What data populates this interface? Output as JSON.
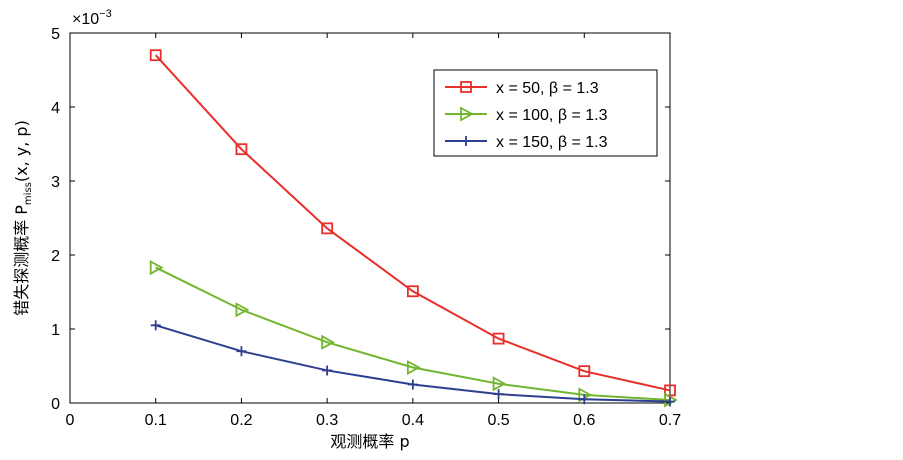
{
  "chart_data": {
    "type": "line",
    "title": "",
    "xlabel": "观测概率 p",
    "ylabel": {
      "prefix": "错失探测概率 P",
      "subscript": "miss",
      "suffix": "(x, y, p)"
    },
    "y_scale_label": {
      "base": "×10",
      "exp": "−3"
    },
    "xlim": [
      0,
      0.7
    ],
    "ylim": [
      0,
      5
    ],
    "x_ticks": [
      "0",
      "0.1",
      "0.2",
      "0.3",
      "0.4",
      "0.5",
      "0.6",
      "0.7"
    ],
    "y_ticks": [
      "0",
      "1",
      "2",
      "3",
      "4",
      "5"
    ],
    "grid": false,
    "legend_position": "top-right",
    "x": [
      0.1,
      0.2,
      0.3,
      0.4,
      0.5,
      0.6,
      0.7
    ],
    "series": [
      {
        "name": "x = 50, β = 1.3",
        "color": "#e8302a",
        "marker": "square",
        "values": [
          4.7,
          3.43,
          2.36,
          1.51,
          0.87,
          0.43,
          0.17
        ]
      },
      {
        "name": "x = 100, β = 1.3",
        "color": "#72b52e",
        "marker": "triangle-right",
        "values": [
          1.83,
          1.26,
          0.82,
          0.48,
          0.26,
          0.11,
          0.04
        ]
      },
      {
        "name": "x = 150, β = 1.3",
        "color": "#2e3f8f",
        "marker": "plus",
        "values": [
          1.05,
          0.7,
          0.44,
          0.25,
          0.12,
          0.05,
          0.02
        ]
      }
    ]
  }
}
